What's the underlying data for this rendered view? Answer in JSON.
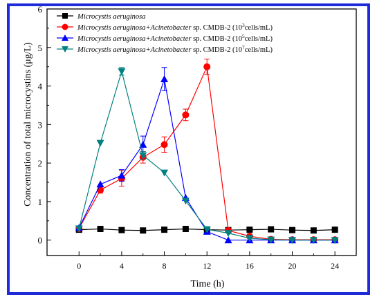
{
  "chart_data": {
    "type": "line",
    "xlabel": "Time (h)",
    "ylabel": "Concentration of total microcystins (μg/L)",
    "xlim": [
      -3,
      26
    ],
    "ylim": [
      -0.4,
      6
    ],
    "xticks": [
      0,
      2,
      4,
      6,
      8,
      10,
      12,
      14,
      16,
      18,
      20,
      22,
      24
    ],
    "xtick_labels": [
      "0",
      "4",
      "8",
      "12",
      "16",
      "20",
      "24"
    ],
    "xtick_label_values": [
      0,
      4,
      8,
      12,
      16,
      20,
      24
    ],
    "yticks": [
      0,
      1,
      2,
      3,
      4,
      5,
      6
    ],
    "ytick_labels": [
      "0",
      "1",
      "2",
      "3",
      "4",
      "5",
      "6"
    ],
    "legend_position": "top-left",
    "grid": false,
    "series": [
      {
        "legend_italic": "Microcystis aeruginosa",
        "legend_rest": "",
        "legend_sup": "",
        "legend_tail": "",
        "color": "#000000",
        "marker": "square",
        "x": [
          0,
          2,
          4,
          6,
          8,
          10,
          12,
          14,
          16,
          18,
          20,
          22,
          24
        ],
        "y": [
          0.27,
          0.29,
          0.26,
          0.25,
          0.27,
          0.29,
          0.27,
          0.26,
          0.27,
          0.28,
          0.26,
          0.25,
          0.27
        ],
        "err": [
          0,
          0,
          0,
          0,
          0,
          0,
          0,
          0,
          0,
          0,
          0,
          0,
          0
        ]
      },
      {
        "legend_italic": "Microcystis aeruginosa+Acinetobacter",
        "legend_rest": " sp. CMDB-2 (10",
        "legend_sup": "3",
        "legend_tail": "cells/mL)",
        "color": "#ff0000",
        "marker": "circle",
        "x": [
          0,
          2,
          4,
          6,
          8,
          10,
          12,
          14,
          16,
          18,
          20,
          22,
          24
        ],
        "y": [
          0.3,
          1.3,
          1.6,
          2.15,
          2.48,
          3.25,
          4.5,
          0.25,
          0.1,
          0.02,
          0.01,
          0.01,
          0.01
        ],
        "err": [
          0,
          0.08,
          0.2,
          0.15,
          0.2,
          0.15,
          0.2,
          0,
          0,
          0,
          0,
          0,
          0
        ]
      },
      {
        "legend_italic": "Microcystis aeruginosa+Acinetobacter",
        "legend_rest": " sp. CMDB-2 (10",
        "legend_sup": "5",
        "legend_tail": "cells/mL)",
        "color": "#0000ff",
        "marker": "triangle-up",
        "x": [
          0,
          2,
          4,
          6,
          8,
          10,
          12,
          14,
          16,
          18,
          20,
          22,
          24
        ],
        "y": [
          0.32,
          1.45,
          1.68,
          2.48,
          4.18,
          1.1,
          0.22,
          0.0,
          0.0,
          0.0,
          0.0,
          0.0,
          0.0
        ],
        "err": [
          0,
          0,
          0.15,
          0.22,
          0.3,
          0,
          0,
          0,
          0,
          0,
          0,
          0,
          0
        ]
      },
      {
        "legend_italic": "Microcystis aeruginosa+Acinetobacter",
        "legend_rest": " sp. CMDB-2 (10",
        "legend_sup": "7",
        "legend_tail": "cells/mL)",
        "color": "#008080",
        "marker": "triangle-down",
        "x": [
          0,
          2,
          4,
          6,
          8,
          10,
          12,
          14,
          16,
          18,
          20,
          22,
          24
        ],
        "y": [
          0.3,
          2.52,
          4.38,
          2.2,
          1.75,
          1.02,
          0.28,
          0.18,
          0.05,
          0.01,
          0.0,
          0.0,
          0.0
        ],
        "err": [
          0,
          0,
          0.1,
          0.1,
          0,
          0,
          0,
          0,
          0,
          0,
          0,
          0,
          0
        ]
      }
    ]
  }
}
